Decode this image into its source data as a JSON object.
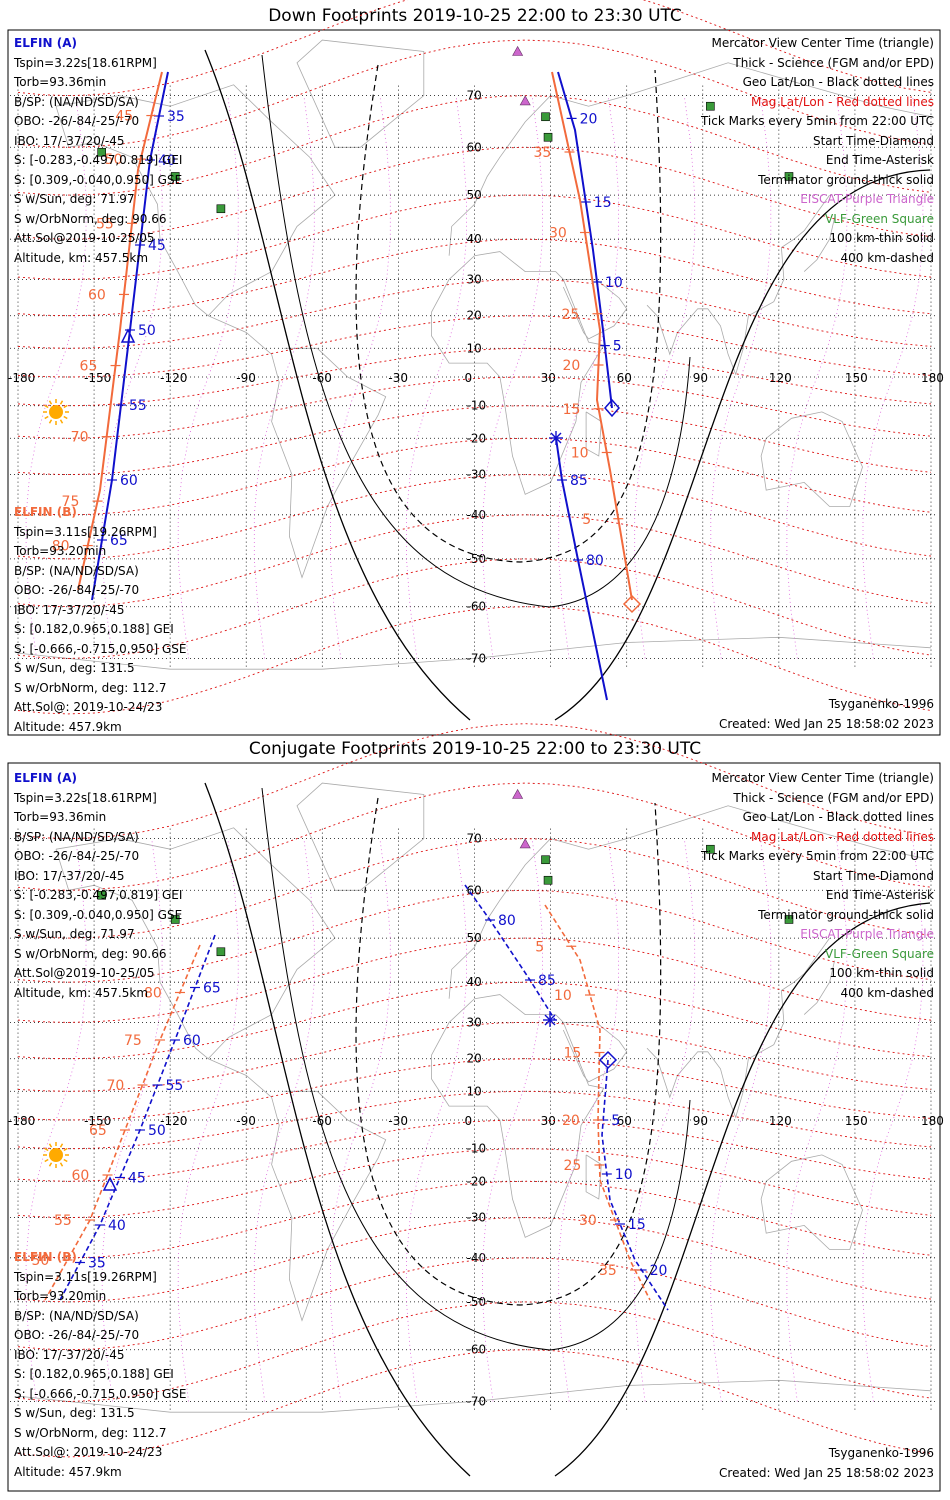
{
  "titles": {
    "top": "Down Footprints 2019-10-25 22:00 to 23:30 UTC",
    "bottom": "Conjugate Footprints 2019-10-25 22:00 to 23:30 UTC"
  },
  "elfin_a": {
    "name": "ELFIN (A)",
    "lines": [
      "Tspin=3.22s[18.61RPM]",
      "Torb=93.36min",
      "B/SP: (NA/ND/SD/SA)",
      "OBO: -26/-84/-25/-70",
      "IBO: 17/-37/20/-45",
      "S: [-0.283,-0.497,0.819] GEI",
      "S: [0.309,-0.040,0.950] GSE",
      "S w/Sun, deg: 71.97",
      "S w/OrbNorm, deg: 90.66",
      "Att.Sol@2019-10-25/05",
      "Altitude, km: 457.5km"
    ]
  },
  "elfin_b": {
    "name": "ELFIN (B)",
    "lines": [
      "Tspin=3.11s[19.26RPM]",
      "Torb=93.20min",
      "B/SP: (NA/ND/SD/SA)",
      "OBO: -26/-84/-25/-70",
      "IBO: 17/-37/20/-45",
      "S: [0.182,0.965,0.188] GEI",
      "S: [-0.666,-0.715,0.950] GSE",
      "S w/Sun, deg: 131.5",
      "S w/OrbNorm, deg: 112.7",
      "Att.Sol@: 2019-10-24/23",
      "Altitude: 457.9km"
    ]
  },
  "legend": {
    "l1": "Mercator View Center Time (triangle)",
    "l2": "Thick - Science (FGM and/or EPD)",
    "l3": "Geo Lat/Lon - Black dotted lines",
    "l4": "Mag Lat/Lon - Red dotted lines",
    "l5": "Tick Marks every 5min from 22:00 UTC",
    "l6": "Start Time-Diamond",
    "l7": "End Time-Asterisk",
    "l8": "Terminator ground-thick solid",
    "l9": "EISCAT-Purple Triangle",
    "l10": "VLF-Green Square",
    "l11": "100 km-thin solid",
    "l12": "400 km-dashed"
  },
  "footer": {
    "model": "Tsyganenko-1996",
    "created": "Created: Wed Jan 25 18:58:02 2023"
  },
  "axes": {
    "lon_labels": [
      "-180",
      "-150",
      "-120",
      "-90",
      "-60",
      "-30",
      "0",
      "30",
      "60",
      "90",
      "120",
      "150",
      "180"
    ],
    "lat_labels": [
      "70",
      "60",
      "50",
      "40",
      "30",
      "20",
      "10",
      "0",
      "-10",
      "-20",
      "-30",
      "-40",
      "-50",
      "-60",
      "-70"
    ]
  },
  "down_tracks": {
    "a_blue": {
      "start": "22:00",
      "ticks_min": [
        "20",
        "15",
        "10",
        "5"
      ],
      "end_ticks_min": [
        "85",
        "80"
      ]
    },
    "b_orange_ticks": [
      "35",
      "30",
      "25",
      "20",
      "15",
      "10",
      "5"
    ],
    "a_orange_ticks": [
      "45",
      "50",
      "55",
      "60",
      "65",
      "70",
      "75",
      "80"
    ],
    "b_blue_ticks": [
      "35",
      "40",
      "45",
      "50",
      "55",
      "60",
      "65"
    ]
  },
  "conj_tracks": {
    "a_blue_ticks": [
      "65",
      "60",
      "55",
      "50",
      "45",
      "40",
      "35"
    ],
    "a_orange_ticks": [
      "80",
      "75",
      "70",
      "65",
      "60",
      "55",
      "50"
    ],
    "b_blue_ticks": [
      "80",
      "85",
      "5",
      "10",
      "15",
      "20"
    ],
    "b_orange_ticks": [
      "5",
      "10",
      "15",
      "20",
      "25",
      "30",
      "35"
    ]
  },
  "colors": {
    "blue": "#1010cc",
    "orange": "#f26a3c",
    "mag_red": "#dd1111",
    "purple": "#cc66cc",
    "green": "#3a9a3a",
    "coast": "#aaaaaa"
  }
}
